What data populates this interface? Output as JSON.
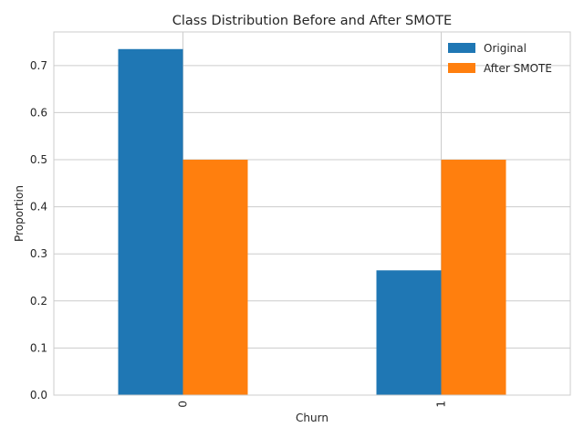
{
  "chart_data": {
    "type": "bar",
    "title": "Class Distribution Before and After SMOTE",
    "xlabel": "Churn",
    "ylabel": "Proportion",
    "categories": [
      "0",
      "1"
    ],
    "series": [
      {
        "name": "Original",
        "values": [
          0.735,
          0.265
        ],
        "color": "#1f77b4"
      },
      {
        "name": "After SMOTE",
        "values": [
          0.5,
          0.5
        ],
        "color": "#ff7f0e"
      }
    ],
    "ylim": [
      0,
      0.7714
    ],
    "yticks": [
      "0.0",
      "0.1",
      "0.2",
      "0.3",
      "0.4",
      "0.5",
      "0.6",
      "0.7"
    ],
    "ytick_values": [
      0,
      0.1,
      0.2,
      0.3,
      0.4,
      0.5,
      0.6,
      0.7
    ],
    "grid": true,
    "legend_position": "top-right",
    "x_tick_rotation": "vertical"
  }
}
